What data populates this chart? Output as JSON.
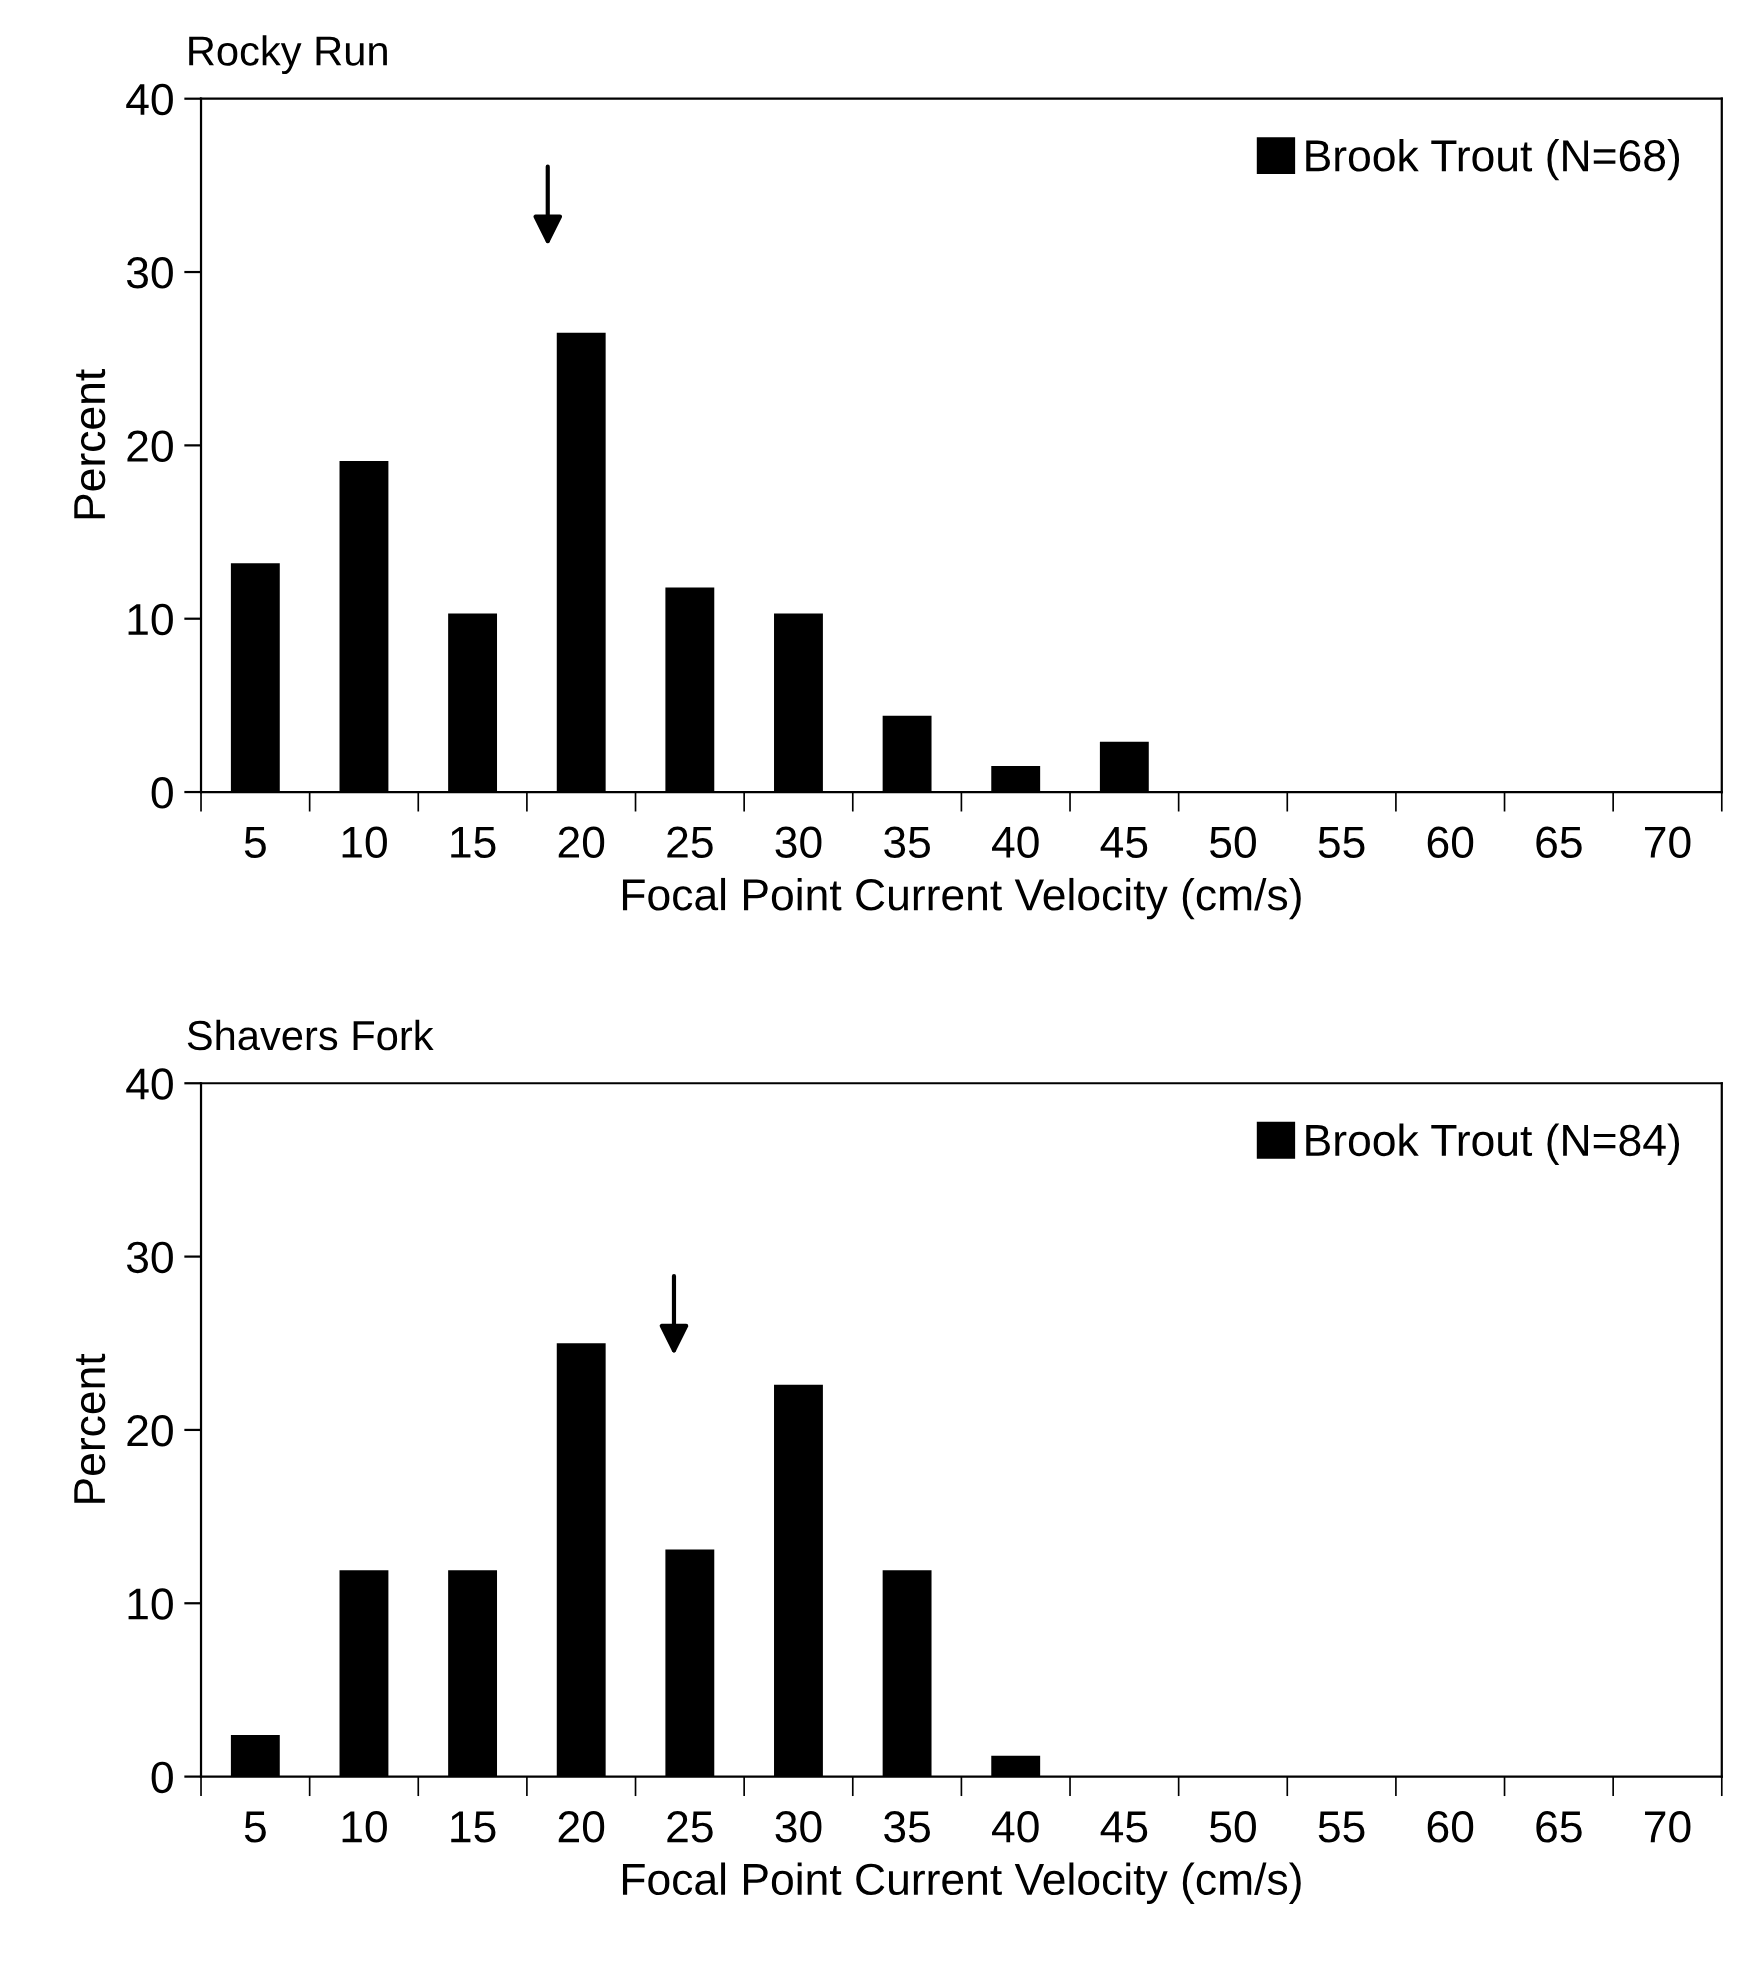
{
  "chart_data": [
    {
      "type": "bar",
      "title": "Rocky Run",
      "xlabel": "Focal Point Current Velocity (cm/s)",
      "ylabel": "Percent",
      "categories": [
        "5",
        "10",
        "15",
        "20",
        "25",
        "30",
        "35",
        "40",
        "45",
        "50",
        "55",
        "60",
        "65",
        "70"
      ],
      "series": [
        {
          "name": "Brook Trout (N=68)",
          "color": "#000000",
          "values": [
            13.2,
            19.1,
            10.3,
            26.5,
            11.8,
            10.3,
            4.4,
            1.5,
            2.9,
            0,
            0,
            0,
            0,
            0
          ]
        }
      ],
      "ylim": [
        0,
        40
      ],
      "yticks": [
        0,
        10,
        20,
        30,
        40
      ],
      "grid": false,
      "legend": "top right"
    },
    {
      "type": "bar",
      "title": "Shavers Fork",
      "xlabel": "Focal Point Current Velocity (cm/s)",
      "ylabel": "Percent",
      "categories": [
        "5",
        "10",
        "15",
        "20",
        "25",
        "30",
        "35",
        "40",
        "45",
        "50",
        "55",
        "60",
        "65",
        "70"
      ],
      "series": [
        {
          "name": "Brook Trout (N=84)",
          "color": "#000000",
          "values": [
            2.4,
            11.9,
            11.9,
            25.0,
            13.1,
            22.6,
            11.9,
            1.2,
            0,
            0,
            0,
            0,
            0,
            0
          ]
        }
      ],
      "ylim": [
        0,
        40
      ],
      "yticks": [
        0,
        10,
        20,
        30,
        40
      ],
      "grid": false,
      "legend": "top right"
    }
  ]
}
